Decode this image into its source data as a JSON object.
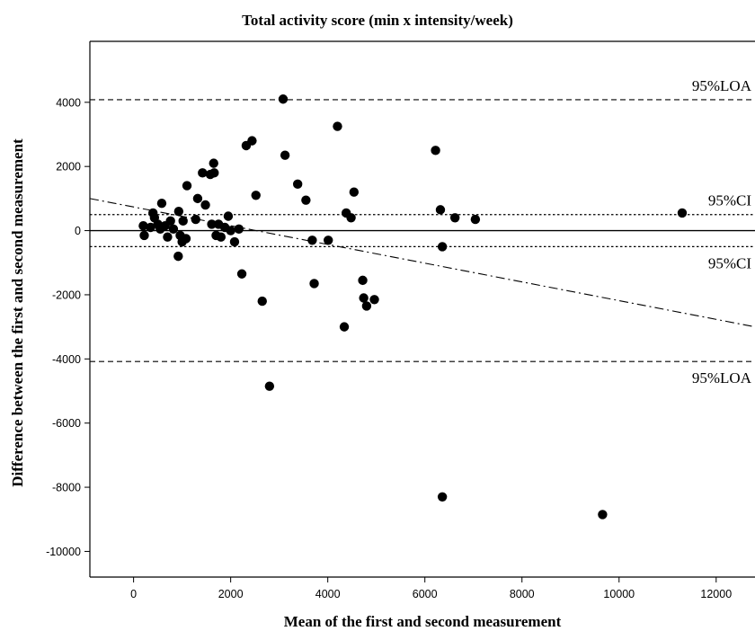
{
  "chart_data": {
    "type": "scatter",
    "title": "Total activity score (min x intensity/week)",
    "xlabel": "Mean of the first and second measurement",
    "ylabel": "Difference between the first and second measurement",
    "xlim": [
      -900,
      12800
    ],
    "ylim": [
      -10800,
      5900
    ],
    "xticks": [
      0,
      2000,
      4000,
      6000,
      8000,
      10000,
      12000
    ],
    "yticks": [
      4000,
      2000,
      0,
      -2000,
      -4000,
      -6000,
      -8000,
      -10000
    ],
    "reference_lines": [
      {
        "name": "upper-loa",
        "y": 4080,
        "style": "dashed",
        "label": "95%LOA",
        "label_pos": "above"
      },
      {
        "name": "upper-ci",
        "y": 500,
        "style": "dotted",
        "label": "95%CI",
        "label_pos": "above"
      },
      {
        "name": "mean",
        "y": 0,
        "style": "solid",
        "label": ""
      },
      {
        "name": "lower-ci",
        "y": -500,
        "style": "dotted",
        "label": "95%CI",
        "label_pos": "below"
      },
      {
        "name": "lower-loa",
        "y": -4080,
        "style": "dashed",
        "label": "95%LOA",
        "label_pos": "below"
      }
    ],
    "regression_line": {
      "x": [
        -900,
        12800
      ],
      "y": [
        1000,
        -3000
      ],
      "style": "dash-dot"
    },
    "points": [
      [
        200,
        150
      ],
      [
        220,
        -150
      ],
      [
        350,
        100
      ],
      [
        400,
        550
      ],
      [
        430,
        400
      ],
      [
        500,
        200
      ],
      [
        550,
        50
      ],
      [
        580,
        850
      ],
      [
        650,
        150
      ],
      [
        700,
        -200
      ],
      [
        760,
        300
      ],
      [
        820,
        50
      ],
      [
        920,
        -800
      ],
      [
        930,
        600
      ],
      [
        960,
        -150
      ],
      [
        1000,
        -350
      ],
      [
        1020,
        300
      ],
      [
        1080,
        -250
      ],
      [
        1100,
        1400
      ],
      [
        1280,
        350
      ],
      [
        1320,
        1000
      ],
      [
        1420,
        1800
      ],
      [
        1480,
        800
      ],
      [
        1580,
        1750
      ],
      [
        1610,
        200
      ],
      [
        1650,
        2100
      ],
      [
        1660,
        1800
      ],
      [
        1700,
        -150
      ],
      [
        1750,
        200
      ],
      [
        1800,
        -200
      ],
      [
        1880,
        100
      ],
      [
        1950,
        450
      ],
      [
        2000,
        0
      ],
      [
        2080,
        -350
      ],
      [
        2170,
        50
      ],
      [
        2230,
        -1350
      ],
      [
        2320,
        2650
      ],
      [
        2440,
        2800
      ],
      [
        2520,
        1100
      ],
      [
        2650,
        -2200
      ],
      [
        2800,
        -4850
      ],
      [
        3080,
        4100
      ],
      [
        3120,
        2350
      ],
      [
        3380,
        1450
      ],
      [
        3550,
        950
      ],
      [
        3680,
        -300
      ],
      [
        3720,
        -1650
      ],
      [
        4010,
        -300
      ],
      [
        4200,
        3250
      ],
      [
        4340,
        -3000
      ],
      [
        4380,
        550
      ],
      [
        4480,
        400
      ],
      [
        4540,
        1200
      ],
      [
        4720,
        -1550
      ],
      [
        4740,
        -2100
      ],
      [
        4800,
        -2350
      ],
      [
        4960,
        -2150
      ],
      [
        6220,
        2500
      ],
      [
        6320,
        650
      ],
      [
        6360,
        -500
      ],
      [
        6360,
        -8300
      ],
      [
        6620,
        400
      ],
      [
        7040,
        350
      ],
      [
        9660,
        -8850
      ],
      [
        11300,
        550
      ]
    ]
  }
}
